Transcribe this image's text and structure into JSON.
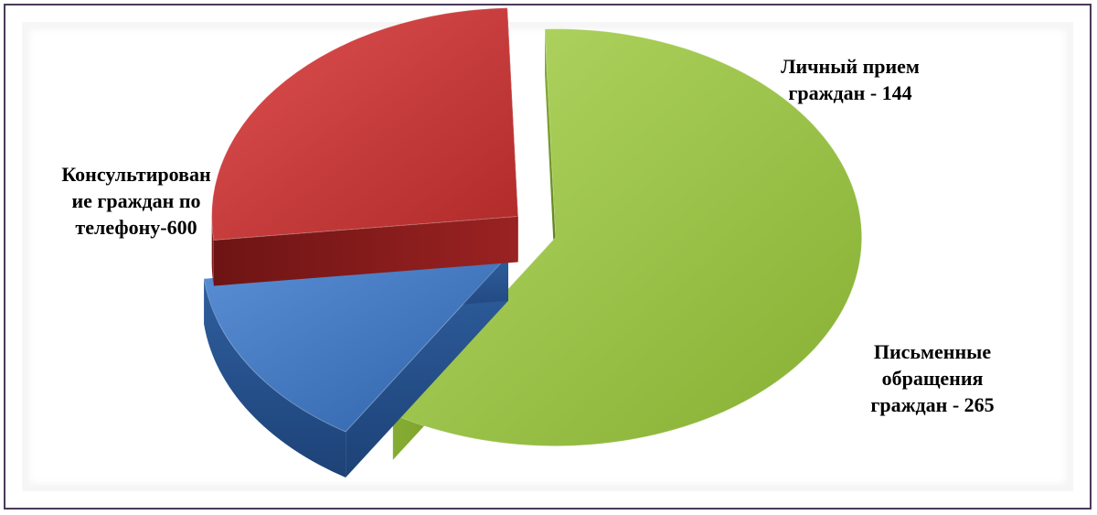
{
  "chart_data": {
    "type": "pie",
    "title": "",
    "slices": [
      {
        "category": "Консультирование граждан по телефону",
        "value": 600,
        "label_lines": [
          "Консультирован",
          "ие граждан по",
          "телефону-600"
        ],
        "color": "#8fb83c"
      },
      {
        "category": "Личный прием граждан",
        "value": 144,
        "label_lines": [
          "Личный прием",
          "граждан - 144"
        ],
        "color": "#3f74bd"
      },
      {
        "category": "Письменные обращения граждан",
        "value": 265,
        "label_lines": [
          "Письменные",
          "обращения",
          "граждан - 265"
        ],
        "color": "#c0393a"
      }
    ],
    "style": "3d-exploded",
    "legend": "none"
  }
}
